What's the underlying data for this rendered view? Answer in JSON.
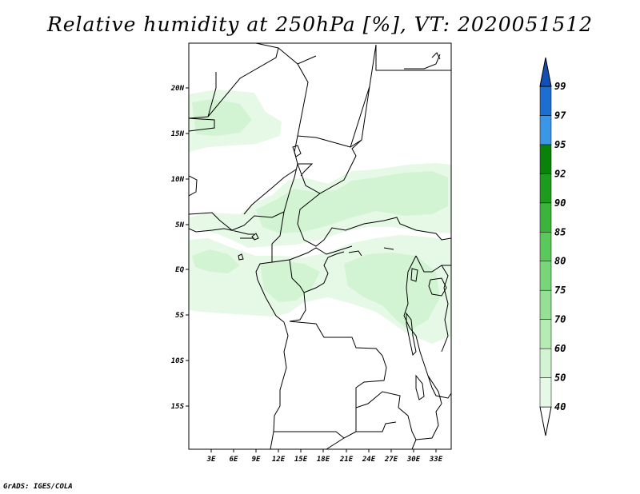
{
  "title": "Relative humidity at 250hPa [%], VT: 2020051512",
  "credit": "GrADS: IGES/COLA",
  "lat_labels": [
    "20N",
    "15N",
    "10N",
    "5N",
    "EQ",
    "5S",
    "10S",
    "15S"
  ],
  "lon_labels": [
    "3E",
    "6E",
    "9E",
    "12E",
    "15E",
    "18E",
    "21E",
    "24E",
    "27E",
    "30E",
    "33E"
  ],
  "colorbar": {
    "levels": [
      "40",
      "50",
      "60",
      "70",
      "75",
      "80",
      "85",
      "90",
      "92",
      "95",
      "97",
      "99"
    ],
    "colors": [
      "#e6f8e6",
      "#d2f4d2",
      "#b4ecb4",
      "#96e096",
      "#78d678",
      "#5ac85a",
      "#3cb43c",
      "#1e9a1e",
      "#0a820a",
      "#3c96e6",
      "#1e6ed2",
      "#1450b4"
    ]
  },
  "colors": {
    "land_outline": "#000000",
    "humidity_light": "#e6f8e6",
    "humidity_mid": "#c8f0c8"
  }
}
